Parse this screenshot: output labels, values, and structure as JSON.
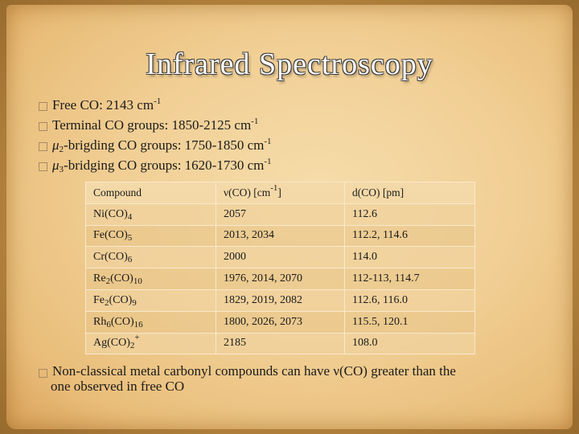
{
  "title": "Infrared Spectroscopy",
  "bullets": [
    {
      "prefix": "",
      "sub": "",
      "text": "Free CO: 2143 cm",
      "sup": "-1"
    },
    {
      "prefix": "",
      "sub": "",
      "text": "Terminal CO groups: 1850-2125 cm",
      "sup": "-1"
    },
    {
      "prefix": "μ",
      "sub": "2",
      "text": "-brigding CO groups: 1750-1850 cm",
      "sup": "-1"
    },
    {
      "prefix": "μ",
      "sub": "3",
      "text": "-bridging CO groups: 1620-1730 cm",
      "sup": "-1"
    }
  ],
  "table": {
    "headers": {
      "compound": "Compound",
      "nu_pre": "ν(CO) [cm",
      "nu_sup": "-1",
      "nu_post": "]",
      "d": "d(CO) [pm]"
    },
    "rows": [
      {
        "c_pre": "Ni(CO)",
        "c_sub": "4",
        "c_sup": "",
        "nu": "2057",
        "d": "112.6"
      },
      {
        "c_pre": "Fe(CO)",
        "c_sub": "5",
        "c_sup": "",
        "nu": "2013, 2034",
        "d": "112.2, 114.6"
      },
      {
        "c_pre": "Cr(CO)",
        "c_sub": "6",
        "c_sup": "",
        "nu": "2000",
        "d": "114.0"
      },
      {
        "c_pre": "Re",
        "c_mid_sub": "2",
        "c_mid": "(CO)",
        "c_sub": "10",
        "c_sup": "",
        "nu": "1976, 2014, 2070",
        "d": "112-113, 114.7"
      },
      {
        "c_pre": "Fe",
        "c_mid_sub": "2",
        "c_mid": "(CO)",
        "c_sub": "9",
        "c_sup": "",
        "nu": "1829, 2019, 2082",
        "d": "112.6, 116.0"
      },
      {
        "c_pre": "Rh",
        "c_mid_sub": "6",
        "c_mid": "(CO)",
        "c_sub": "16",
        "c_sup": "",
        "nu": "1800, 2026, 2073",
        "d": "115.5, 120.1"
      },
      {
        "c_pre": "Ag(CO)",
        "c_sub": "2",
        "c_sup": "+",
        "nu": "2185",
        "d": "108.0"
      }
    ]
  },
  "footer": {
    "line1_pre": "Non-classical metal carbonyl compounds can have ",
    "nu": "ν(CO)",
    "line1_post": " greater than the",
    "line2": "one observed in free CO"
  }
}
